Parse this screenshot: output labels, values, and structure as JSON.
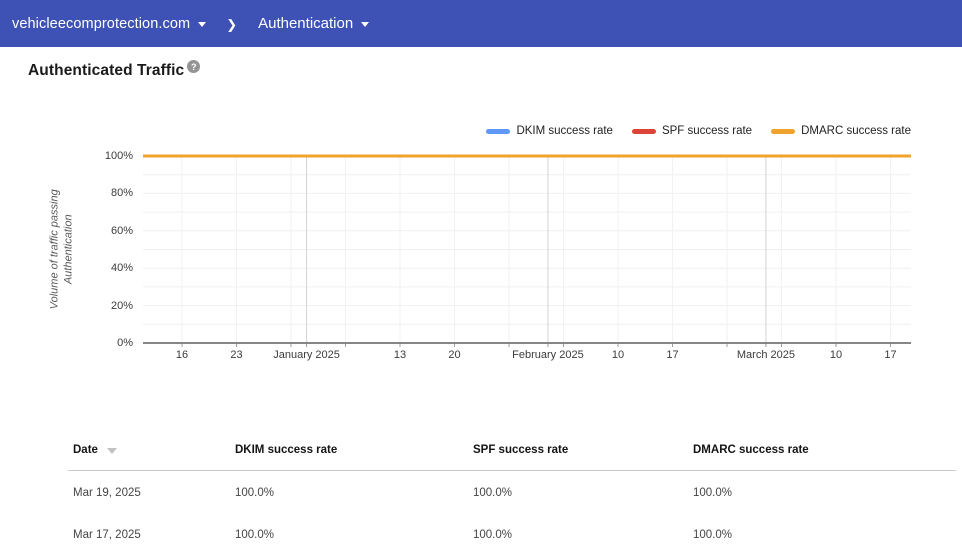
{
  "topbar": {
    "bg_color": "#3e51b4",
    "domain_selector": {
      "label": "vehicleecomprotection.com"
    },
    "breadcrumb_separator": "❯",
    "section_selector": {
      "label": "Authentication"
    }
  },
  "header": {
    "title": "Authenticated Traffic"
  },
  "icons": {
    "domain_caret": "chevron-down",
    "section_caret": "chevron-down",
    "separator": "chevron-right",
    "help": "question-mark-circle",
    "date_sort": "triangle-down"
  },
  "chart_data": {
    "type": "line",
    "title": "Authenticated Traffic",
    "ylabel": "Volume of traffic passing Authentication",
    "ylabel_lines": [
      "Volume of traffic passing",
      "Authentication"
    ],
    "ylim": [
      0,
      100
    ],
    "y_minor_step": 10,
    "grid": true,
    "legend_position": "top-right",
    "y_ticks": [
      {
        "value": 0,
        "label": "0%"
      },
      {
        "value": 20,
        "label": "20%"
      },
      {
        "value": 40,
        "label": "40%"
      },
      {
        "value": 60,
        "label": "60%"
      },
      {
        "value": 80,
        "label": "80%"
      },
      {
        "value": 100,
        "label": "100%"
      }
    ],
    "x_axis": {
      "tick_count": 14,
      "day_tick_labels": [
        {
          "tick": 0,
          "label": "16"
        },
        {
          "tick": 1,
          "label": "23"
        },
        {
          "tick": 4,
          "label": "13"
        },
        {
          "tick": 5,
          "label": "20"
        },
        {
          "tick": 8,
          "label": "10"
        },
        {
          "tick": 9,
          "label": "17"
        },
        {
          "tick": 12,
          "label": "10"
        },
        {
          "tick": 13,
          "label": "17"
        }
      ],
      "month_tick_labels": [
        {
          "tick": 2.2857,
          "label": "January 2025"
        },
        {
          "tick": 6.7143,
          "label": "February 2025"
        },
        {
          "tick": 10.7143,
          "label": "March 2025"
        }
      ]
    },
    "series": [
      {
        "name": "DKIM success rate",
        "color": "#5e97f6",
        "value_percent": 100
      },
      {
        "name": "SPF success rate",
        "color": "#db4437",
        "value_percent": 100
      },
      {
        "name": "DMARC success rate",
        "color": "#efa32c",
        "value_percent": 100
      }
    ]
  },
  "table": {
    "headers": [
      "Date",
      "DKIM success rate",
      "SPF success rate",
      "DMARC success rate"
    ],
    "sort": {
      "column": "Date",
      "direction": "desc"
    },
    "rows": [
      {
        "date": "Mar 19, 2025",
        "dkim": "100.0%",
        "spf": "100.0%",
        "dmarc": "100.0%"
      },
      {
        "date": "Mar 17, 2025",
        "dkim": "100.0%",
        "spf": "100.0%",
        "dmarc": "100.0%"
      }
    ]
  }
}
